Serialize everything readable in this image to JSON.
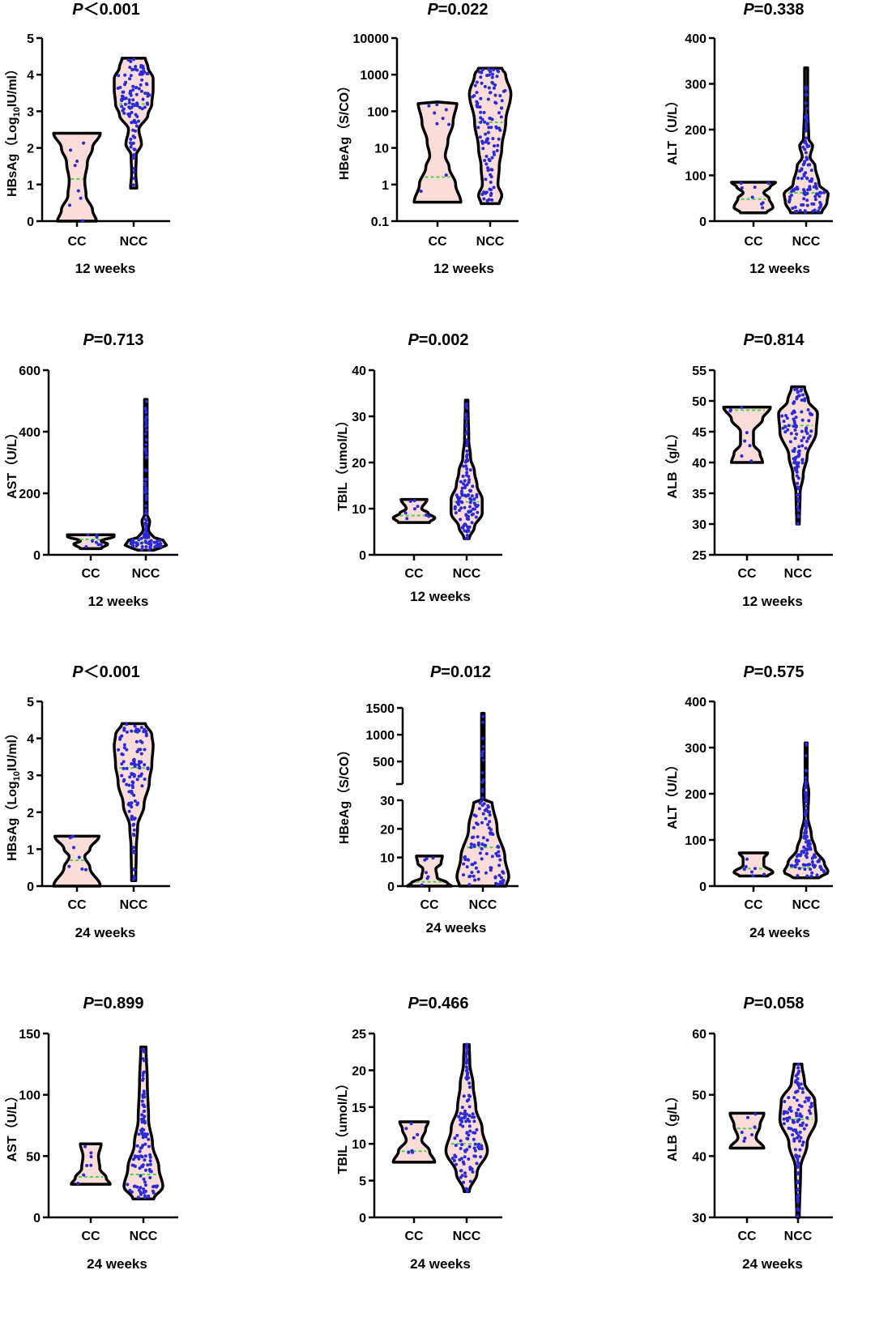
{
  "colors": {
    "violin_fill": "#fadcd8",
    "violin_stroke": "#000000",
    "dot": "#2b2bd6",
    "median": "#4fd04f",
    "quartile": "#e06a5a"
  },
  "chart_data": [
    {
      "type": "violin",
      "title_p": "P",
      "title_rest": "＜0.001",
      "ylabel": "HBsAg（Log",
      "ylabel_sub": "10",
      "ylabel_suffix": "IU/ml）",
      "xlabel": "12 weeks",
      "yscale": "linear",
      "ylim": [
        0,
        5
      ],
      "ticks": [
        0,
        1,
        2,
        3,
        4,
        5
      ],
      "tick_labels": [
        "0",
        "1",
        "2",
        "3",
        "4",
        "5"
      ],
      "groups": [
        {
          "name": "CC",
          "n": 8,
          "median": 1.15,
          "profile": [
            [
              0,
              0.75
            ],
            [
              0.3,
              0.6
            ],
            [
              0.7,
              0.35
            ],
            [
              1.1,
              0.3
            ],
            [
              1.6,
              0.4
            ],
            [
              2.0,
              0.6
            ],
            [
              2.4,
              0.9
            ]
          ]
        },
        {
          "name": "NCC",
          "n": 110,
          "median": 3.2,
          "profile": [
            [
              0.9,
              0.12
            ],
            [
              1.3,
              0.08
            ],
            [
              1.8,
              0.1
            ],
            [
              2.1,
              0.3
            ],
            [
              2.5,
              0.2
            ],
            [
              2.9,
              0.55
            ],
            [
              3.2,
              0.7
            ],
            [
              3.6,
              0.75
            ],
            [
              3.9,
              0.75
            ],
            [
              4.2,
              0.55
            ],
            [
              4.45,
              0.45
            ]
          ]
        }
      ]
    },
    {
      "type": "violin",
      "title_p": "P",
      "title_rest": "=0.022",
      "ylabel": "HBeAg（S/CO）",
      "xlabel": "12 weeks",
      "yscale": "log",
      "ylim": [
        0.1,
        10000
      ],
      "ticks": [
        0.1,
        1,
        10,
        100,
        1000,
        10000
      ],
      "tick_labels": [
        "0.1",
        "1",
        "10",
        "100",
        "1000",
        "10000"
      ],
      "groups": [
        {
          "name": "CC",
          "n": 9,
          "median": 1.6,
          "profile": [
            [
              0.33,
              0.9
            ],
            [
              1,
              0.7
            ],
            [
              3,
              0.45
            ],
            [
              6,
              0.3
            ],
            [
              15,
              0.4
            ],
            [
              50,
              0.6
            ],
            [
              180,
              0.75
            ]
          ]
        },
        {
          "name": "NCC",
          "n": 110,
          "median": 50,
          "profile": [
            [
              0.3,
              0.35
            ],
            [
              0.5,
              0.45
            ],
            [
              1,
              0.3
            ],
            [
              3,
              0.35
            ],
            [
              10,
              0.45
            ],
            [
              50,
              0.6
            ],
            [
              300,
              0.8
            ],
            [
              1000,
              0.6
            ],
            [
              1500,
              0.45
            ]
          ]
        }
      ]
    },
    {
      "type": "violin",
      "title_p": "P",
      "title_rest": "=0.338",
      "ylabel": "ALT（U/L）",
      "xlabel": "12 weeks",
      "yscale": "linear",
      "ylim": [
        0,
        400
      ],
      "ticks": [
        0,
        100,
        200,
        300,
        400
      ],
      "tick_labels": [
        "0",
        "100",
        "200",
        "300",
        "400"
      ],
      "groups": [
        {
          "name": "CC",
          "n": 8,
          "median": 48,
          "profile": [
            [
              18,
              0.5
            ],
            [
              30,
              0.75
            ],
            [
              50,
              0.6
            ],
            [
              62,
              0.4
            ],
            [
              75,
              0.65
            ],
            [
              85,
              0.85
            ]
          ]
        },
        {
          "name": "NCC",
          "n": 110,
          "median": 62,
          "profile": [
            [
              18,
              0.6
            ],
            [
              40,
              0.8
            ],
            [
              60,
              0.85
            ],
            [
              80,
              0.5
            ],
            [
              120,
              0.35
            ],
            [
              140,
              0.15
            ],
            [
              165,
              0.25
            ],
            [
              180,
              0.1
            ],
            [
              250,
              0.06
            ],
            [
              335,
              0.06
            ]
          ]
        }
      ]
    },
    {
      "type": "violin",
      "title_p": "P",
      "title_rest": "=0.713",
      "ylabel": "AST（U/L）",
      "xlabel": "12 weeks",
      "yscale": "linear",
      "ylim": [
        0,
        600
      ],
      "ticks": [
        0,
        200,
        400,
        600
      ],
      "tick_labels": [
        "0",
        "200",
        "400",
        "600"
      ],
      "groups": [
        {
          "name": "CC",
          "n": 8,
          "median": 50,
          "profile": [
            [
              20,
              0.4
            ],
            [
              35,
              0.65
            ],
            [
              45,
              0.4
            ],
            [
              60,
              0.9
            ],
            [
              65,
              0.9
            ]
          ]
        },
        {
          "name": "NCC",
          "n": 110,
          "median": 40,
          "profile": [
            [
              15,
              0.3
            ],
            [
              30,
              0.8
            ],
            [
              45,
              0.7
            ],
            [
              60,
              0.25
            ],
            [
              80,
              0.1
            ],
            [
              110,
              0.15
            ],
            [
              130,
              0.05
            ],
            [
              505,
              0.05
            ]
          ]
        }
      ]
    },
    {
      "type": "violin",
      "title_p": "P",
      "title_rest": "=0.002",
      "ylabel": "TBIL（umol/L）",
      "xlabel": "12 weeks",
      "yscale": "linear",
      "ylim": [
        0,
        40
      ],
      "ticks": [
        0,
        10,
        20,
        30,
        40
      ],
      "tick_labels": [
        "0",
        "10",
        "20",
        "30",
        "40"
      ],
      "groups": [
        {
          "name": "CC",
          "n": 8,
          "median": 8.5,
          "profile": [
            [
              7,
              0.6
            ],
            [
              8,
              0.8
            ],
            [
              9,
              0.55
            ],
            [
              10,
              0.3
            ],
            [
              12,
              0.5
            ]
          ]
        },
        {
          "name": "NCC",
          "n": 110,
          "median": 11.5,
          "profile": [
            [
              3.5,
              0.1
            ],
            [
              6,
              0.3
            ],
            [
              9,
              0.6
            ],
            [
              12,
              0.6
            ],
            [
              15,
              0.4
            ],
            [
              18,
              0.3
            ],
            [
              21,
              0.15
            ],
            [
              25,
              0.08
            ],
            [
              33.5,
              0.05
            ]
          ]
        }
      ]
    },
    {
      "type": "violin",
      "title_p": "P",
      "title_rest": "=0.814",
      "ylabel": "ALB（g/L）",
      "xlabel": "12 weeks",
      "yscale": "linear",
      "ylim": [
        25,
        55
      ],
      "ticks": [
        25,
        30,
        35,
        40,
        45,
        50,
        55
      ],
      "tick_labels": [
        "25",
        "30",
        "35",
        "40",
        "45",
        "50",
        "55"
      ],
      "groups": [
        {
          "name": "CC",
          "n": 8,
          "median": 48.5,
          "profile": [
            [
              40,
              0.6
            ],
            [
              41.5,
              0.5
            ],
            [
              43,
              0.25
            ],
            [
              45,
              0.25
            ],
            [
              47,
              0.6
            ],
            [
              49,
              0.9
            ]
          ]
        },
        {
          "name": "NCC",
          "n": 110,
          "median": 46,
          "profile": [
            [
              30,
              0.05
            ],
            [
              35,
              0.08
            ],
            [
              38,
              0.2
            ],
            [
              41,
              0.35
            ],
            [
              45,
              0.7
            ],
            [
              48,
              0.75
            ],
            [
              50,
              0.4
            ],
            [
              52.3,
              0.25
            ]
          ]
        }
      ]
    },
    {
      "type": "violin",
      "title_p": "P",
      "title_rest": "＜0.001",
      "ylabel": "HBsAg（Log",
      "ylabel_sub": "10",
      "ylabel_suffix": "IU/ml）",
      "xlabel": "24 weeks",
      "yscale": "linear",
      "ylim": [
        0,
        5
      ],
      "ticks": [
        0,
        1,
        2,
        3,
        4,
        5
      ],
      "tick_labels": [
        "0",
        "1",
        "2",
        "3",
        "4",
        "5"
      ],
      "groups": [
        {
          "name": "CC",
          "n": 7,
          "median": 0.7,
          "profile": [
            [
              0,
              0.9
            ],
            [
              0.5,
              0.5
            ],
            [
              0.8,
              0.3
            ],
            [
              1.0,
              0.5
            ],
            [
              1.35,
              0.85
            ]
          ]
        },
        {
          "name": "NCC",
          "n": 110,
          "median": 3.2,
          "profile": [
            [
              0.15,
              0.08
            ],
            [
              1,
              0.1
            ],
            [
              1.6,
              0.15
            ],
            [
              2.2,
              0.4
            ],
            [
              2.8,
              0.6
            ],
            [
              3.3,
              0.7
            ],
            [
              3.8,
              0.75
            ],
            [
              4.1,
              0.7
            ],
            [
              4.4,
              0.45
            ]
          ]
        }
      ]
    },
    {
      "type": "violin",
      "title_p": "P",
      "title_rest": "=0.012",
      "ylabel": "HBeAg（S/CO）",
      "xlabel": "24 weeks",
      "yscale": "broken",
      "ylim": [
        0,
        1500
      ],
      "axis_break": [
        30,
        80
      ],
      "ticks": [
        0,
        10,
        20,
        30,
        500,
        1000,
        1500
      ],
      "tick_labels": [
        "0",
        "10",
        "20",
        "30",
        "500",
        "1000",
        "1500"
      ],
      "groups": [
        {
          "name": "CC",
          "n": 7,
          "median": 1.5,
          "profile": [
            [
              0,
              0.85
            ],
            [
              1,
              0.7
            ],
            [
              3,
              0.3
            ],
            [
              6,
              0.25
            ],
            [
              8,
              0.45
            ],
            [
              10.5,
              0.5
            ]
          ]
        },
        {
          "name": "NCC",
          "n": 110,
          "median": 13.5,
          "profile": [
            [
              0,
              0.9
            ],
            [
              3,
              1
            ],
            [
              10,
              0.85
            ],
            [
              20,
              0.55
            ],
            [
              30,
              0.35
            ],
            [
              31,
              0.05
            ],
            [
              1400,
              0.05
            ]
          ]
        }
      ]
    },
    {
      "type": "violin",
      "title_p": "P",
      "title_rest": "=0.575",
      "ylabel": "ALT（U/L）",
      "xlabel": "24 weeks",
      "yscale": "linear",
      "ylim": [
        0,
        400
      ],
      "ticks": [
        0,
        100,
        200,
        300,
        400
      ],
      "tick_labels": [
        "0",
        "100",
        "200",
        "300",
        "400"
      ],
      "groups": [
        {
          "name": "CC",
          "n": 7,
          "median": 38,
          "profile": [
            [
              22,
              0.55
            ],
            [
              30,
              0.75
            ],
            [
              45,
              0.4
            ],
            [
              60,
              0.4
            ],
            [
              72,
              0.55
            ]
          ]
        },
        {
          "name": "NCC",
          "n": 110,
          "median": 40,
          "profile": [
            [
              18,
              0.5
            ],
            [
              30,
              0.85
            ],
            [
              50,
              0.7
            ],
            [
              80,
              0.35
            ],
            [
              110,
              0.2
            ],
            [
              150,
              0.07
            ],
            [
              205,
              0.1
            ],
            [
              230,
              0.04
            ],
            [
              310,
              0.04
            ]
          ]
        }
      ]
    },
    {
      "type": "violin",
      "title_p": "P",
      "title_rest": "=0.899",
      "ylabel": "AST（U/L）",
      "xlabel": "24 weeks",
      "yscale": "linear",
      "ylim": [
        0,
        150
      ],
      "ticks": [
        0,
        50,
        100,
        150
      ],
      "tick_labels": [
        "0",
        "50",
        "100",
        "150"
      ],
      "groups": [
        {
          "name": "CC",
          "n": 7,
          "median": 33,
          "profile": [
            [
              27,
              0.75
            ],
            [
              32,
              0.6
            ],
            [
              40,
              0.35
            ],
            [
              50,
              0.3
            ],
            [
              60,
              0.4
            ]
          ]
        },
        {
          "name": "NCC",
          "n": 110,
          "median": 35,
          "profile": [
            [
              15,
              0.4
            ],
            [
              25,
              0.75
            ],
            [
              40,
              0.6
            ],
            [
              60,
              0.35
            ],
            [
              80,
              0.2
            ],
            [
              110,
              0.15
            ],
            [
              139,
              0.1
            ]
          ]
        }
      ]
    },
    {
      "type": "violin",
      "title_p": "P",
      "title_rest": "=0.466",
      "ylabel": "TBIL（umol/L）",
      "xlabel": "24 weeks",
      "yscale": "linear",
      "ylim": [
        0,
        25
      ],
      "ticks": [
        0,
        5,
        10,
        15,
        20,
        25
      ],
      "tick_labels": [
        "0",
        "5",
        "10",
        "15",
        "20",
        "25"
      ],
      "groups": [
        {
          "name": "CC",
          "n": 7,
          "median": 9,
          "profile": [
            [
              7.5,
              0.8
            ],
            [
              9,
              0.6
            ],
            [
              10.5,
              0.3
            ],
            [
              12,
              0.45
            ],
            [
              13,
              0.55
            ]
          ]
        },
        {
          "name": "NCC",
          "n": 110,
          "median": 10,
          "profile": [
            [
              3.5,
              0.1
            ],
            [
              6,
              0.4
            ],
            [
              9,
              0.8
            ],
            [
              12,
              0.6
            ],
            [
              15,
              0.35
            ],
            [
              18,
              0.25
            ],
            [
              21,
              0.12
            ],
            [
              23.5,
              0.1
            ]
          ]
        }
      ]
    },
    {
      "type": "violin",
      "title_p": "P",
      "title_rest": "=0.058",
      "ylabel": "ALB（g/L）",
      "xlabel": "24 weeks",
      "yscale": "linear",
      "ylim": [
        30,
        60
      ],
      "ticks": [
        30,
        40,
        50,
        60
      ],
      "tick_labels": [
        "30",
        "40",
        "50",
        "60"
      ],
      "groups": [
        {
          "name": "CC",
          "n": 7,
          "median": 44.5,
          "profile": [
            [
              41.3,
              0.65
            ],
            [
              43,
              0.35
            ],
            [
              45,
              0.5
            ],
            [
              47,
              0.65
            ]
          ]
        },
        {
          "name": "NCC",
          "n": 110,
          "median": 46,
          "profile": [
            [
              30,
              0.05
            ],
            [
              38,
              0.1
            ],
            [
              42,
              0.35
            ],
            [
              46,
              0.7
            ],
            [
              49,
              0.65
            ],
            [
              52,
              0.25
            ],
            [
              55,
              0.15
            ]
          ]
        }
      ]
    }
  ]
}
